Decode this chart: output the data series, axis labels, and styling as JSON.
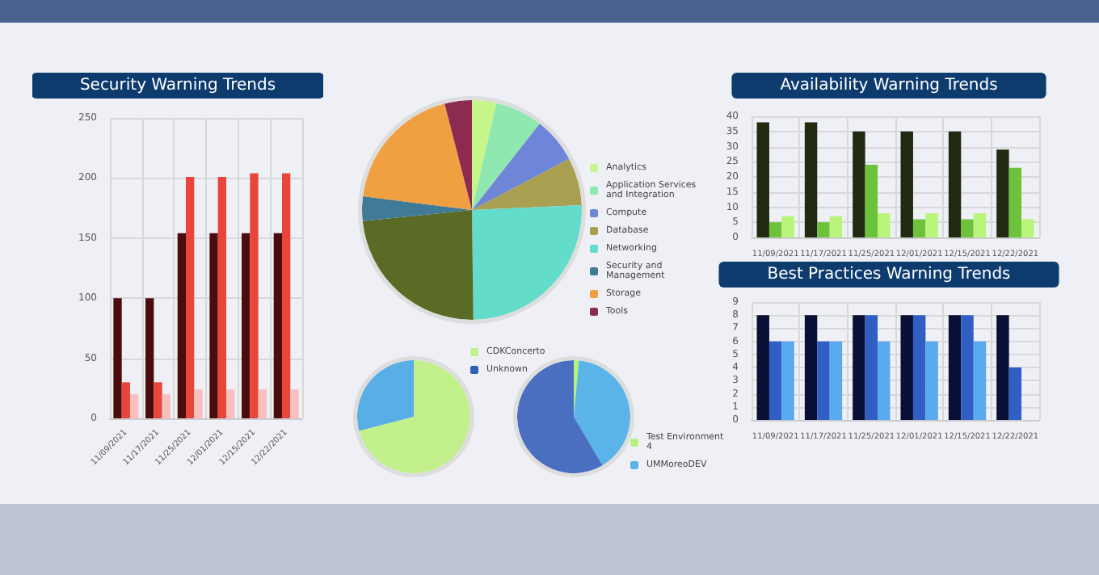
{
  "chart_data": [
    {
      "type": "bar",
      "title": "Security Warning Trends",
      "categories": [
        "11/09/2021",
        "11/17/2021",
        "11/25/2021",
        "12/01/2021",
        "12/15/2021",
        "12/22/2021"
      ],
      "series": [
        {
          "color": "#4a0c0c",
          "values": [
            100,
            100,
            154,
            154,
            154,
            154
          ]
        },
        {
          "color": "#e8453c",
          "values": [
            30,
            30,
            201,
            201,
            204,
            204
          ]
        },
        {
          "color": "#f5c0c0",
          "values": [
            20,
            20,
            24,
            24,
            24,
            24
          ]
        }
      ],
      "ylim": [
        0,
        250
      ],
      "yticks": [
        0,
        50,
        100,
        150,
        200,
        250
      ],
      "grid": true
    },
    {
      "type": "pie",
      "categories": [
        "Analytics",
        "Application Services and Integration",
        "Compute",
        "Database",
        "Networking",
        null,
        "Security and Management",
        "Storage",
        "Tools"
      ],
      "values": [
        3.6,
        7,
        6.7,
        7,
        25.5,
        23.6,
        3.6,
        19,
        4
      ],
      "colors": [
        "#c6f58a",
        "#8ee8b0",
        "#6f86d8",
        "#a8a050",
        "#63dccb",
        "#5a6b25",
        "#3f7a96",
        "#f0a040",
        "#8c2a50"
      ],
      "legend": "right"
    },
    {
      "type": "pie",
      "categories": [
        "CDKConcerto",
        null,
        "Unknown"
      ],
      "values": [
        71,
        29,
        0
      ],
      "colors": [
        "#c2f08c",
        "#5aaee6",
        "#2f5fb8"
      ],
      "legend": "right"
    },
    {
      "type": "pie",
      "categories": [
        "Test Environment 4",
        "UMMoreoDEV",
        null
      ],
      "values": [
        1.5,
        40,
        58.5
      ],
      "colors": [
        "#b8f080",
        "#5ab4e8",
        "#4a6ec0"
      ],
      "legend": "right"
    },
    {
      "type": "bar",
      "title": "Availability Warning Trends",
      "categories": [
        "11/09/2021",
        "11/17/2021",
        "11/25/2021",
        "12/01/2021",
        "12/15/2021",
        "12/22/2021"
      ],
      "series": [
        {
          "color": "#1f2a10",
          "values": [
            38,
            38,
            35,
            35,
            35,
            29
          ]
        },
        {
          "color": "#6cc23a",
          "values": [
            5,
            5,
            24,
            6,
            6,
            23
          ]
        },
        {
          "color": "#b8f57a",
          "values": [
            7,
            7,
            8,
            8,
            8,
            6
          ]
        }
      ],
      "ylim": [
        0,
        40
      ],
      "yticks": [
        0,
        5,
        10,
        15,
        20,
        25,
        30,
        35,
        40
      ],
      "grid": true
    },
    {
      "type": "bar",
      "title": "Best Practices Warning Trends",
      "categories": [
        "11/09/2021",
        "11/17/2021",
        "11/25/2021",
        "12/01/2021",
        "12/15/2021",
        "12/22/2021"
      ],
      "series": [
        {
          "color": "#0a0f35",
          "values": [
            8,
            8,
            8,
            8,
            8,
            8
          ]
        },
        {
          "color": "#2f5fc4",
          "values": [
            6,
            6,
            8,
            8,
            8,
            4
          ]
        },
        {
          "color": "#5aa8f0",
          "values": [
            6,
            6,
            6,
            6,
            6,
            null
          ]
        }
      ],
      "ylim": [
        0,
        9
      ],
      "yticks": [
        0,
        1,
        2,
        3,
        4,
        5,
        6,
        7,
        8,
        9
      ],
      "grid": true
    }
  ]
}
